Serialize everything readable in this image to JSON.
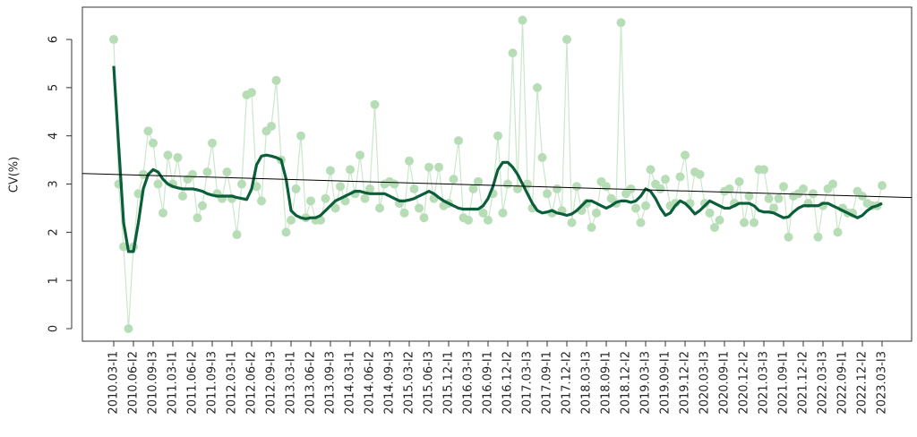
{
  "chart_data": {
    "type": "line",
    "y_label": "CV(%)",
    "categories": [
      "2010.03-I1",
      null,
      null,
      null,
      "2010.06-I2",
      null,
      null,
      null,
      "2010.09-I3",
      null,
      null,
      null,
      "2011.03-I1",
      null,
      null,
      null,
      "2011.06-I2",
      null,
      null,
      null,
      "2011.09-I3",
      null,
      null,
      null,
      "2012.03-I1",
      null,
      null,
      null,
      "2012.06-I2",
      null,
      null,
      null,
      "2012.09-I3",
      null,
      null,
      null,
      "2013.03-I1",
      null,
      null,
      null,
      "2013.06-I2",
      null,
      null,
      null,
      "2013.09-I3",
      null,
      null,
      null,
      "2014.03-I1",
      null,
      null,
      null,
      "2014.06-I2",
      null,
      null,
      null,
      "2014.09-I3",
      null,
      null,
      null,
      "2015.03-I2",
      null,
      null,
      null,
      "2015.06-I3",
      null,
      null,
      null,
      "2015.12-I1",
      null,
      null,
      null,
      "2016.03-I3",
      null,
      null,
      null,
      "2016.09-I1",
      null,
      null,
      null,
      "2016.12-I2",
      null,
      null,
      null,
      "2017.03-I3",
      null,
      null,
      null,
      "2017.09-I1",
      null,
      null,
      null,
      "2017.12-I2",
      null,
      null,
      null,
      "2018.03-I3",
      null,
      null,
      null,
      "2018.09-I1",
      null,
      null,
      null,
      "2018.12-I2",
      null,
      null,
      null,
      "2019.03-I3",
      null,
      null,
      null,
      "2019.09-I1",
      null,
      null,
      null,
      "2019.12-I2",
      null,
      null,
      null,
      "2020.03-I3",
      null,
      null,
      null,
      "2020.09-I1",
      null,
      null,
      null,
      "2020.12-I2",
      null,
      null,
      null,
      "2021.03-I3",
      null,
      null,
      null,
      "2021.09-I1",
      null,
      null,
      null,
      "2021.12-I2",
      null,
      null,
      null,
      "2022.03-I3",
      null,
      null,
      null,
      "2022.09-I1",
      null,
      null,
      null,
      "2022.12-I2",
      null,
      null,
      null,
      "2023.03-I3"
    ],
    "series": [
      {
        "color": "#b7ddb7",
        "line_color": "#cbe7cb",
        "markers": true,
        "values": [
          6.0,
          3.0,
          1.7,
          0.0,
          1.7,
          2.8,
          3.2,
          4.1,
          3.85,
          3.0,
          2.4,
          3.6,
          3.0,
          3.55,
          2.75,
          3.1,
          3.2,
          2.3,
          2.55,
          3.25,
          3.85,
          2.8,
          2.7,
          3.25,
          2.7,
          1.95,
          3.0,
          4.85,
          4.9,
          2.95,
          2.65,
          4.1,
          4.2,
          5.15,
          3.5,
          2.0,
          2.25,
          2.9,
          4.0,
          2.3,
          2.65,
          2.25,
          2.25,
          2.7,
          3.28,
          2.5,
          2.95,
          2.65,
          3.3,
          2.8,
          3.6,
          2.7,
          2.9,
          4.65,
          2.5,
          3.0,
          3.05,
          3.0,
          2.6,
          2.4,
          3.48,
          2.9,
          2.5,
          2.3,
          3.35,
          2.7,
          3.35,
          2.55,
          2.6,
          3.1,
          3.9,
          2.3,
          2.25,
          2.9,
          3.05,
          2.4,
          2.25,
          2.8,
          4.0,
          2.4,
          3.0,
          5.72,
          2.9,
          6.4,
          3.0,
          2.5,
          5.0,
          3.55,
          2.8,
          2.4,
          2.9,
          2.45,
          6.0,
          2.2,
          2.95,
          2.45,
          2.6,
          2.1,
          2.4,
          3.05,
          2.95,
          2.7,
          2.6,
          6.35,
          2.8,
          2.9,
          2.5,
          2.2,
          2.55,
          3.3,
          3.0,
          2.9,
          3.1,
          2.55,
          2.6,
          3.15,
          3.6,
          2.6,
          3.25,
          3.2,
          2.6,
          2.4,
          2.1,
          2.25,
          2.85,
          2.9,
          2.6,
          3.05,
          2.2,
          2.75,
          2.2,
          3.3,
          3.3,
          2.7,
          2.5,
          2.7,
          2.95,
          1.9,
          2.75,
          2.8,
          2.9,
          2.6,
          2.8,
          1.9,
          2.55,
          2.9,
          3.0,
          2.0,
          2.5,
          2.4,
          2.4,
          2.85,
          2.75,
          2.6,
          2.55,
          2.55,
          2.97
        ]
      },
      {
        "color": "#0b5e3a",
        "markers": false,
        "values": [
          5.45,
          3.8,
          2.2,
          1.6,
          1.6,
          2.2,
          2.9,
          3.2,
          3.3,
          3.25,
          3.1,
          3.0,
          2.95,
          2.92,
          2.9,
          2.9,
          2.9,
          2.88,
          2.85,
          2.8,
          2.77,
          2.75,
          2.75,
          2.75,
          2.75,
          2.72,
          2.7,
          2.68,
          2.9,
          3.4,
          3.58,
          3.6,
          3.58,
          3.55,
          3.5,
          3.1,
          2.45,
          2.35,
          2.3,
          2.28,
          2.3,
          2.3,
          2.35,
          2.45,
          2.55,
          2.65,
          2.7,
          2.75,
          2.8,
          2.85,
          2.85,
          2.82,
          2.8,
          2.8,
          2.8,
          2.8,
          2.75,
          2.7,
          2.65,
          2.65,
          2.67,
          2.7,
          2.75,
          2.8,
          2.85,
          2.8,
          2.72,
          2.65,
          2.6,
          2.55,
          2.5,
          2.48,
          2.48,
          2.48,
          2.48,
          2.55,
          2.7,
          2.95,
          3.3,
          3.45,
          3.45,
          3.35,
          3.2,
          3.0,
          2.8,
          2.6,
          2.45,
          2.4,
          2.42,
          2.45,
          2.4,
          2.38,
          2.35,
          2.38,
          2.45,
          2.55,
          2.65,
          2.65,
          2.6,
          2.55,
          2.5,
          2.55,
          2.62,
          2.65,
          2.65,
          2.62,
          2.65,
          2.75,
          2.9,
          2.85,
          2.7,
          2.5,
          2.35,
          2.4,
          2.55,
          2.65,
          2.6,
          2.5,
          2.38,
          2.45,
          2.55,
          2.65,
          2.6,
          2.55,
          2.5,
          2.5,
          2.55,
          2.6,
          2.6,
          2.6,
          2.55,
          2.45,
          2.42,
          2.42,
          2.4,
          2.35,
          2.3,
          2.32,
          2.42,
          2.5,
          2.55,
          2.55,
          2.55,
          2.55,
          2.6,
          2.6,
          2.55,
          2.5,
          2.45,
          2.4,
          2.35,
          2.3,
          2.35,
          2.45,
          2.52,
          2.55,
          2.6
        ]
      }
    ],
    "trend_line": {
      "color": "#000000",
      "values": [
        3.22,
        2.72
      ]
    },
    "ylim": [
      -0.26,
      6.67
    ],
    "yticks": [
      0,
      1,
      2,
      3,
      4,
      5,
      6
    ]
  }
}
